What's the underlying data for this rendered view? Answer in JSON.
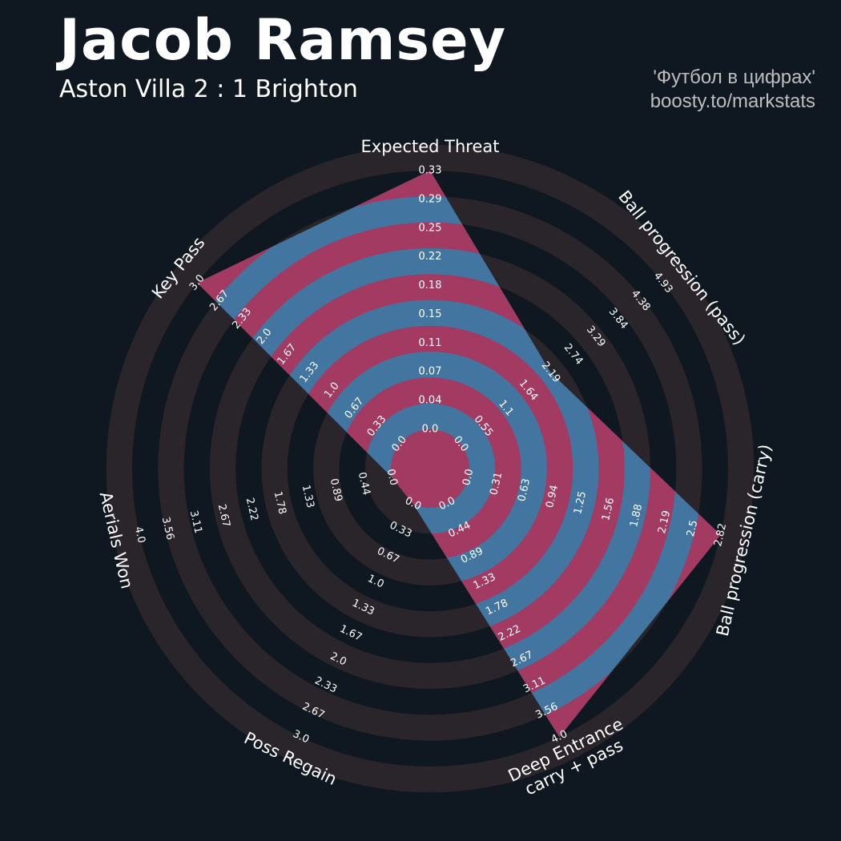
{
  "header": {
    "title": "Jacob Ramsey",
    "subtitle": "Aston Villa 2 : 1 Brighton",
    "credit_line1": "'Футбол в цифрах'",
    "credit_line2": "boosty.to/markstats"
  },
  "colors": {
    "background": "#0f1820",
    "ring_light": "#2a242b",
    "ring_dark": "#0f1820",
    "polygon_base": "#4275a0",
    "polygon_alt": "#a33a62",
    "text": "#ffffff",
    "credit": "#bdbdbd"
  },
  "chart_data": {
    "type": "radar",
    "title": "Jacob Ramsey",
    "subtitle": "Aston Villa 2 : 1 Brighton",
    "params": [
      "Expected Threat",
      "Ball progression (pass)",
      "Ball progression (carry)",
      "Deep Entrance\ncarry + pass",
      "Poss Regain",
      "Aerials Won",
      "Key Pass"
    ],
    "min_range": [
      0.0,
      0.0,
      0.0,
      0.0,
      0.0,
      0.0,
      0.0
    ],
    "max_range": [
      0.33,
      4.93,
      2.82,
      4.0,
      3.0,
      4.0,
      3.0
    ],
    "ring_labels": [
      [
        "0.0",
        "0.04",
        "0.07",
        "0.11",
        "0.15",
        "0.18",
        "0.22",
        "0.25",
        "0.29",
        "0.33"
      ],
      [
        "0.0",
        "0.55",
        "1.1",
        "1.64",
        "2.19",
        "2.74",
        "3.29",
        "3.84",
        "4.38",
        "4.93"
      ],
      [
        "0.0",
        "0.31",
        "0.63",
        "0.94",
        "1.25",
        "1.56",
        "1.88",
        "2.19",
        "2.5",
        "2.82"
      ],
      [
        "0.0",
        "0.44",
        "0.89",
        "1.33",
        "1.78",
        "2.22",
        "2.67",
        "3.11",
        "3.56",
        "4.0"
      ],
      [
        "0.0",
        "0.33",
        "0.67",
        "1.0",
        "1.33",
        "1.67",
        "2.0",
        "2.33",
        "2.67",
        "3.0"
      ],
      [
        "0.0",
        "0.44",
        "0.89",
        "1.33",
        "1.78",
        "2.22",
        "2.67",
        "3.11",
        "3.56",
        "4.0"
      ],
      [
        "0.0",
        "0.33",
        "0.67",
        "1.0",
        "1.33",
        "1.67",
        "2.0",
        "2.33",
        "2.67",
        "3.0"
      ]
    ],
    "series": [
      {
        "values": [
          0.33,
          2.19,
          2.82,
          4.0,
          0.0,
          0.0,
          3.0
        ]
      }
    ]
  }
}
